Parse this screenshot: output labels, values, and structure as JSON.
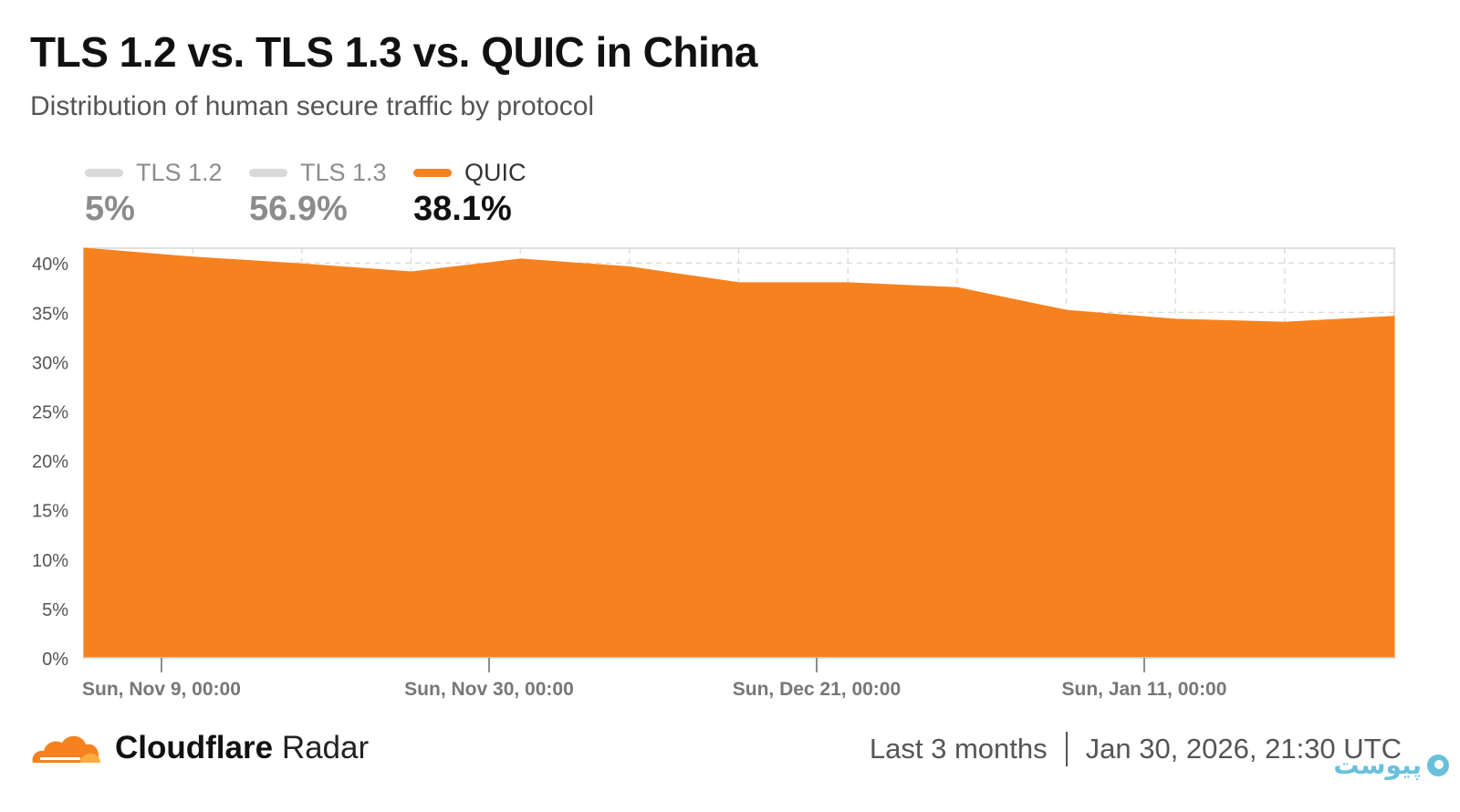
{
  "header": {
    "title": "TLS 1.2 vs. TLS 1.3 vs. QUIC in China",
    "subtitle": "Distribution of human secure traffic by protocol"
  },
  "legend": [
    {
      "label": "TLS 1.2",
      "value": "5%",
      "active": false
    },
    {
      "label": "TLS 1.3",
      "value": "56.9%",
      "active": false
    },
    {
      "label": "QUIC",
      "value": "38.1%",
      "active": true
    }
  ],
  "colors": {
    "quic": "#f6821f",
    "inactive": "#d9d9d9",
    "grid": "#d6d6d6",
    "axis": "#8c8c8c"
  },
  "chart_data": {
    "type": "area",
    "y_ticks": [
      "0%",
      "5%",
      "10%",
      "15%",
      "20%",
      "25%",
      "30%",
      "35%",
      "40%"
    ],
    "ylim": [
      0,
      41.5
    ],
    "x_tick_labels": [
      "Sun, Nov 9, 00:00",
      "Sun, Nov 30, 00:00",
      "Sun, Dec 21, 00:00",
      "Sun, Jan 11, 00:00"
    ],
    "x_tick_positions": [
      0.71,
      3.71,
      6.71,
      9.71
    ],
    "xlim": [
      0,
      12
    ],
    "grid": true,
    "series": [
      {
        "name": "QUIC",
        "x": [
          0,
          1,
          2,
          3,
          4,
          5,
          6,
          7,
          8,
          9,
          10,
          11,
          12
        ],
        "values": [
          41.5,
          40.6,
          39.9,
          39.1,
          40.4,
          39.6,
          38.0,
          38.0,
          37.5,
          35.2,
          34.3,
          34.0,
          34.6
        ]
      }
    ]
  },
  "footer": {
    "brand_bold": "Cloudflare",
    "brand_rest": "Radar",
    "range": "Last 3 months",
    "timestamp": "Jan 30, 2026, 21:30 UTC"
  },
  "watermark": {
    "text": "پیوست"
  }
}
